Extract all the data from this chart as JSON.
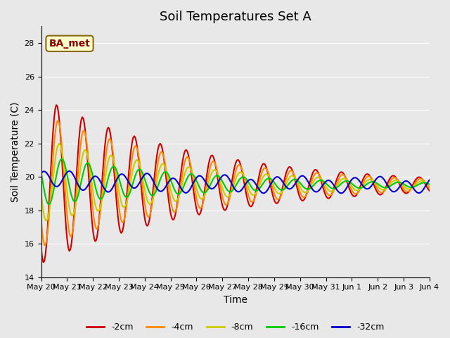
{
  "title": "Soil Temperatures Set A",
  "xlabel": "Time",
  "ylabel": "Soil Temperature (C)",
  "ylim": [
    14,
    29
  ],
  "yticks": [
    14,
    16,
    18,
    20,
    22,
    24,
    26,
    28
  ],
  "annotation": "BA_met",
  "bg_color": "#e8e8e8",
  "series_colors": [
    "#cc0000",
    "#ff8800",
    "#cccc00",
    "#00cc00",
    "#0000cc"
  ],
  "series_labels": [
    "-2cm",
    "-4cm",
    "-8cm",
    "-16cm",
    "-32cm"
  ],
  "line_width": 1.5,
  "num_days": 15,
  "xtick_labels": [
    "May 20",
    "May 21",
    "May 22",
    "May 23",
    "May 24",
    "May 25",
    "May 26",
    "May 27",
    "May 28",
    "May 29",
    "May 30",
    "May 31",
    "Jun 1",
    "Jun 2",
    "Jun 3",
    "Jun 4"
  ],
  "base_temp": 19.5,
  "amplitudes": [
    5.0,
    4.0,
    2.5,
    1.5,
    0.5
  ],
  "phase_shifts": [
    0.0,
    0.05,
    0.1,
    0.2,
    0.5
  ],
  "amplitude_decay": [
    0.85,
    0.85,
    0.85,
    0.85,
    0.98
  ],
  "title_fontsize": 13,
  "label_fontsize": 10,
  "tick_fontsize": 8,
  "legend_fontsize": 9
}
